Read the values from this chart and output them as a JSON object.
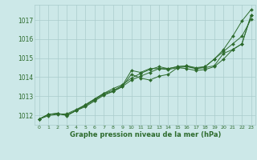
{
  "title": "Graphe pression niveau de la mer (hPa)",
  "bg_color": "#cce8e8",
  "grid_color": "#aacccc",
  "line_color": "#2d6b2d",
  "marker_color": "#2d6b2d",
  "xlim": [
    -0.5,
    23.5
  ],
  "ylim": [
    1011.5,
    1017.8
  ],
  "xtick_labels": [
    "0",
    "1",
    "2",
    "3",
    "4",
    "5",
    "6",
    "7",
    "8",
    "9",
    "10",
    "11",
    "12",
    "13",
    "14",
    "15",
    "16",
    "17",
    "18",
    "19",
    "20",
    "21",
    "22",
    "23"
  ],
  "yticks": [
    1012,
    1013,
    1014,
    1015,
    1016,
    1017
  ],
  "series": [
    [
      1011.8,
      1012.05,
      1012.1,
      1012.0,
      1012.25,
      1012.45,
      1012.75,
      1013.05,
      1013.25,
      1013.5,
      1013.85,
      1014.05,
      1014.25,
      1014.45,
      1014.45,
      1014.55,
      1014.6,
      1014.45,
      1014.55,
      1014.95,
      1015.45,
      1016.15,
      1016.95,
      1017.55
    ],
    [
      1011.8,
      1012.05,
      1012.1,
      1011.98,
      1012.25,
      1012.55,
      1012.85,
      1013.15,
      1013.3,
      1013.55,
      1014.35,
      1014.25,
      1014.45,
      1014.45,
      1014.4,
      1014.5,
      1014.55,
      1014.45,
      1014.5,
      1014.6,
      1015.25,
      1015.45,
      1015.75,
      1017.25
    ],
    [
      1011.8,
      1012.05,
      1012.08,
      1012.02,
      1012.25,
      1012.5,
      1012.8,
      1013.1,
      1013.25,
      1013.5,
      1014.15,
      1013.95,
      1013.85,
      1014.05,
      1014.15,
      1014.5,
      1014.45,
      1014.35,
      1014.4,
      1014.55,
      1014.95,
      1015.45,
      1015.75,
      1017.25
    ],
    [
      1011.8,
      1011.98,
      1012.05,
      1012.08,
      1012.3,
      1012.55,
      1012.85,
      1013.15,
      1013.4,
      1013.6,
      1013.95,
      1014.2,
      1014.4,
      1014.55,
      1014.45,
      1014.55,
      1014.6,
      1014.5,
      1014.55,
      1014.95,
      1015.35,
      1015.75,
      1016.15,
      1017.05
    ]
  ]
}
